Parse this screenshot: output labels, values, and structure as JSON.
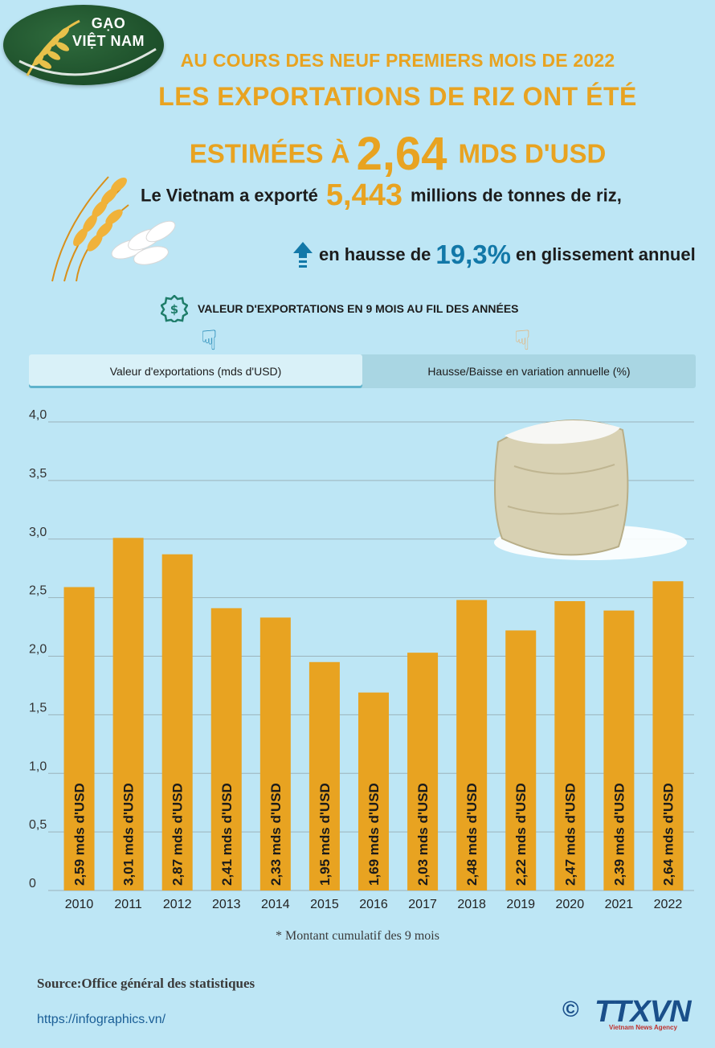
{
  "logo": {
    "line1": "GẠO",
    "line2": "VIỆT NAM"
  },
  "header": {
    "line1": "AU COURS DES NEUF PREMIERS MOIS DE 2022",
    "line2": "LES EXPORTATIONS DE RIZ ONT ÉTÉ",
    "line3_pre": "ESTIMÉES À",
    "line3_big": "2,64",
    "line3_post": "MDS D'USD"
  },
  "exported": {
    "pre": "Le Vietnam a exporté",
    "value": "5,443",
    "post": "millions de tonnes de riz,"
  },
  "growth": {
    "pre": "en hausse de",
    "value": "19,3%",
    "post": "en glissement annuel"
  },
  "section": {
    "label": "VALEUR D'EXPORTATIONS EN 9 MOIS AU FIL DES ANNÉES",
    "icon": "dollar-badge-icon"
  },
  "tabs": [
    {
      "label": "Valeur d'exportations (mds d'USD)",
      "active": true
    },
    {
      "label": "Hausse/Baisse en variation annuelle (%)",
      "active": false
    }
  ],
  "colors": {
    "bar": "#e8a321",
    "accent": "#1278a8",
    "background": "#bde6f5"
  },
  "chart_data": {
    "type": "bar",
    "categories": [
      "2010",
      "2011",
      "2012",
      "2013",
      "2014",
      "2015",
      "2016",
      "2017",
      "2018",
      "2019",
      "2020",
      "2021",
      "2022"
    ],
    "values": [
      2.59,
      3.01,
      2.87,
      2.41,
      2.33,
      1.95,
      1.69,
      2.03,
      2.48,
      2.22,
      2.47,
      2.39,
      2.64
    ],
    "data_labels": [
      "2,59 mds d'USD",
      "3,01 mds d'USD",
      "2,87 mds d'USD",
      "2,41 mds d'USD",
      "2,33 mds d'USD",
      "1,95 mds d'USD",
      "1,69 mds d'USD",
      "2,03 mds d'USD",
      "2,48 mds d'USD",
      "2,22 mds d'USD",
      "2,47 mds d'USD",
      "2,39 mds d'USD",
      "2,64 mds d'USD"
    ],
    "y_ticks": [
      "0",
      "0,5",
      "1,0",
      "1,5",
      "2,0",
      "2,5",
      "3,0",
      "3,5",
      "4,0"
    ],
    "ylim": [
      0,
      4
    ],
    "grid": true
  },
  "footer": {
    "note": "* Montant cumulatif des 9 mois",
    "source": "Source:Office général des statistiques",
    "url": "https://infographics.vn/",
    "copyright": "©",
    "brand": "TTXVN",
    "brand_sub": "Vietnam News Agency"
  }
}
